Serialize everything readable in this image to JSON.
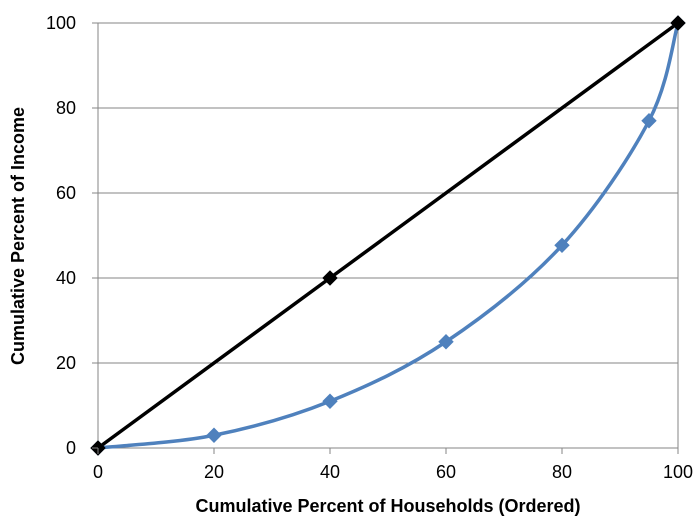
{
  "chart_data": {
    "type": "line",
    "title": "",
    "xlabel": "Cumulative Percent of Households (Ordered)",
    "ylabel": "Cumulative Percent of Income",
    "xlim": [
      0,
      100
    ],
    "ylim": [
      0,
      100
    ],
    "xticks": [
      0,
      20,
      40,
      60,
      80,
      100
    ],
    "yticks": [
      0,
      20,
      40,
      60,
      80,
      100
    ],
    "grid": "horizontal",
    "legend": "none",
    "series": [
      {
        "color": "#4f81bd",
        "marker": "diamond",
        "smooth": true,
        "points": [
          {
            "x": 0,
            "y": 0
          },
          {
            "x": 20,
            "y": 3
          },
          {
            "x": 40,
            "y": 11
          },
          {
            "x": 60,
            "y": 25
          },
          {
            "x": 80,
            "y": 47.7
          },
          {
            "x": 95,
            "y": 77
          },
          {
            "x": 100,
            "y": 100
          }
        ]
      },
      {
        "color": "#000000",
        "marker": "diamond",
        "smooth": false,
        "points": [
          {
            "x": 0,
            "y": 0
          },
          {
            "x": 40,
            "y": 40
          },
          {
            "x": 100,
            "y": 100
          }
        ]
      }
    ]
  }
}
